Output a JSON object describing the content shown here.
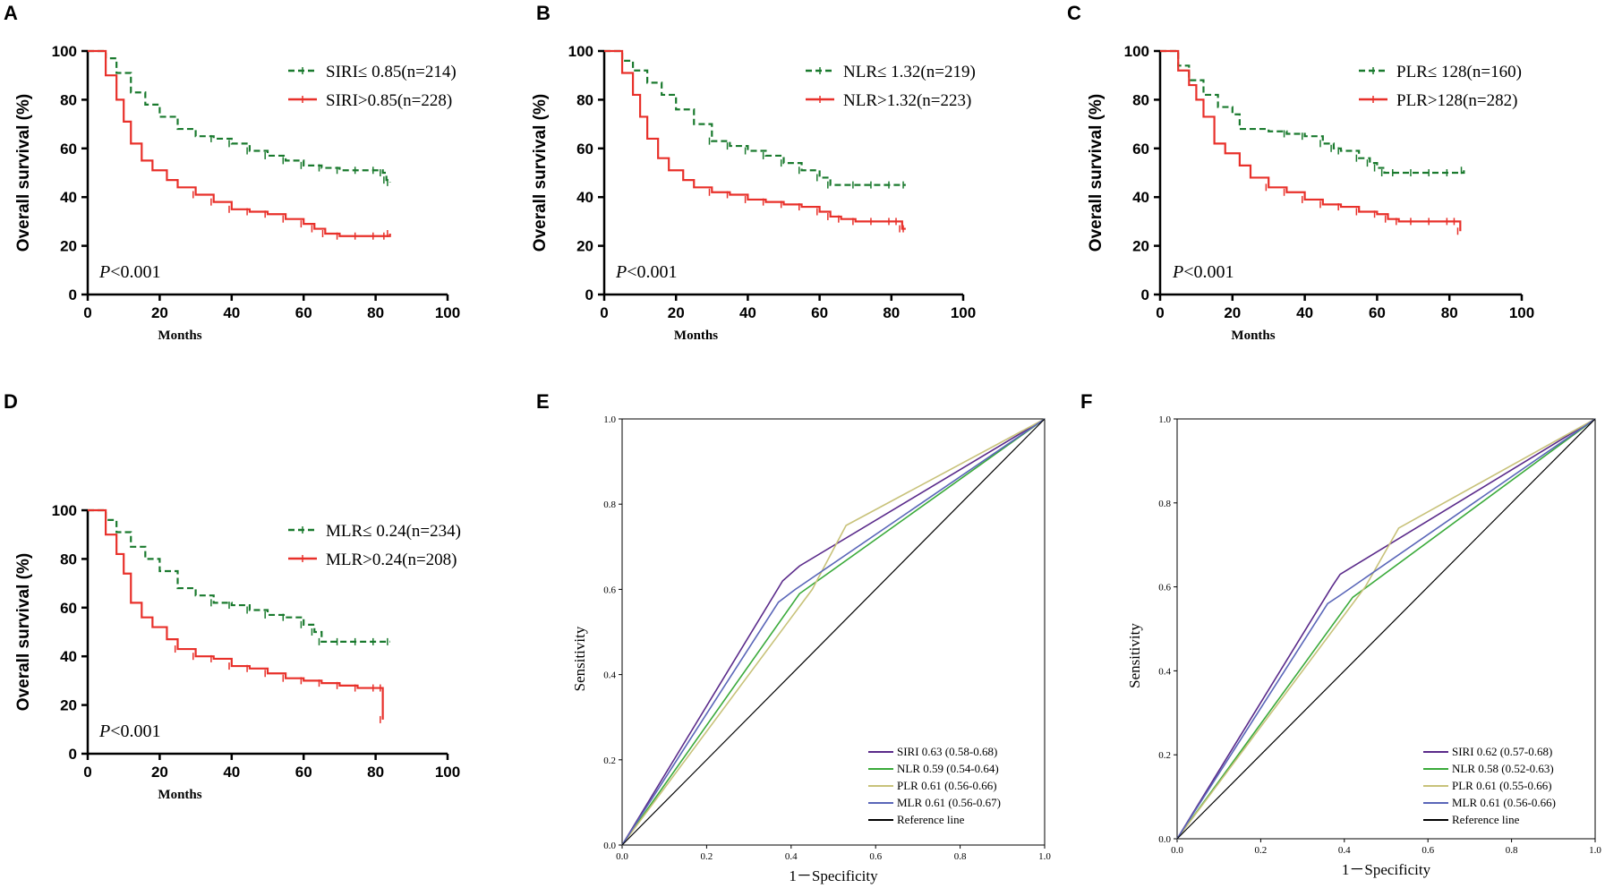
{
  "colors": {
    "green": "#1a7a2e",
    "red": "#e8302a",
    "black": "#000000",
    "siri": "#5a2a8a",
    "nlr": "#3aaa3a",
    "plr": "#c8c27a",
    "mlr": "#5a66b8"
  },
  "chart_data": [
    {
      "panel": "A",
      "type": "line",
      "xlabel": "Months",
      "ylabel": "Overall survival (%)",
      "xlim": [
        0,
        100
      ],
      "ylim": [
        0,
        100
      ],
      "xticks": [
        "0",
        "20",
        "40",
        "60",
        "80",
        "100"
      ],
      "yticks": [
        "0",
        "20",
        "40",
        "60",
        "80",
        "100"
      ],
      "pvalue_italic": "P",
      "pvalue_rest": "<0.001",
      "series": [
        {
          "name": "SIRI≤ 0.85(n=214)",
          "style": "dashed",
          "color": "green",
          "x": [
            3,
            5,
            8,
            12,
            16,
            20,
            25,
            30,
            35,
            40,
            45,
            50,
            55,
            60,
            65,
            70,
            75,
            80,
            82,
            83,
            84
          ],
          "y": [
            100,
            97,
            91,
            83,
            78,
            73,
            68,
            65,
            64,
            62,
            59,
            57,
            55,
            53,
            52,
            51,
            51,
            51,
            50,
            47,
            46
          ]
        },
        {
          "name": "SIRI>0.85(n=228)",
          "style": "solid",
          "color": "red",
          "x": [
            3,
            5,
            8,
            10,
            12,
            15,
            18,
            22,
            25,
            30,
            35,
            40,
            45,
            50,
            55,
            60,
            63,
            66,
            70,
            75,
            80,
            83,
            84
          ],
          "y": [
            100,
            90,
            80,
            71,
            62,
            55,
            51,
            47,
            44,
            41,
            38,
            35,
            34,
            33,
            31,
            29,
            27,
            25,
            24,
            24,
            24,
            24,
            25
          ]
        }
      ]
    },
    {
      "panel": "B",
      "type": "line",
      "xlabel": "Months",
      "ylabel": "Overall survival (%)",
      "xlim": [
        0,
        100
      ],
      "ylim": [
        0,
        100
      ],
      "xticks": [
        "0",
        "20",
        "40",
        "60",
        "80",
        "100"
      ],
      "yticks": [
        "0",
        "20",
        "40",
        "60",
        "80",
        "100"
      ],
      "pvalue_italic": "P",
      "pvalue_rest": "<0.001",
      "series": [
        {
          "name": "NLR≤ 1.32(n=219)",
          "style": "dashed",
          "color": "green",
          "x": [
            3,
            5,
            8,
            12,
            16,
            20,
            25,
            30,
            35,
            40,
            45,
            50,
            55,
            60,
            63,
            70,
            75,
            80,
            84
          ],
          "y": [
            100,
            96,
            92,
            87,
            82,
            76,
            70,
            63,
            61,
            59,
            57,
            54,
            51,
            48,
            45,
            45,
            45,
            45,
            45
          ]
        },
        {
          "name": "NLR>1.32(n=223)",
          "style": "solid",
          "color": "red",
          "x": [
            3,
            5,
            8,
            10,
            12,
            15,
            18,
            22,
            25,
            30,
            35,
            40,
            45,
            50,
            55,
            60,
            63,
            66,
            70,
            75,
            80,
            82,
            83,
            84
          ],
          "y": [
            100,
            91,
            82,
            73,
            64,
            56,
            51,
            47,
            44,
            42,
            41,
            39,
            38,
            37,
            36,
            34,
            32,
            31,
            30,
            30,
            30,
            30,
            27,
            27
          ]
        }
      ]
    },
    {
      "panel": "C",
      "type": "line",
      "xlabel": "Months",
      "ylabel": "Overall survival (%)",
      "xlim": [
        0,
        100
      ],
      "ylim": [
        0,
        100
      ],
      "xticks": [
        "0",
        "20",
        "40",
        "60",
        "80",
        "100"
      ],
      "yticks": [
        "0",
        "20",
        "40",
        "60",
        "80",
        "100"
      ],
      "pvalue_italic": "P",
      "pvalue_rest": "<0.001",
      "series": [
        {
          "name": "PLR≤ 128(n=160)",
          "style": "dashed",
          "color": "green",
          "x": [
            3,
            5,
            8,
            12,
            16,
            20,
            22,
            25,
            30,
            35,
            40,
            45,
            48,
            50,
            55,
            58,
            60,
            62,
            65,
            70,
            75,
            80,
            84
          ],
          "y": [
            100,
            94,
            88,
            82,
            77,
            74,
            68,
            68,
            67,
            66,
            65,
            62,
            60,
            59,
            56,
            54,
            52,
            50,
            50,
            50,
            50,
            50,
            51
          ]
        },
        {
          "name": "PLR>128(n=282)",
          "style": "solid",
          "color": "red",
          "x": [
            3,
            5,
            8,
            10,
            12,
            15,
            18,
            22,
            25,
            30,
            35,
            40,
            45,
            50,
            55,
            60,
            63,
            66,
            70,
            75,
            80,
            82,
            83
          ],
          "y": [
            100,
            92,
            86,
            80,
            73,
            62,
            58,
            53,
            48,
            44,
            42,
            39,
            37,
            36,
            34,
            33,
            31,
            30,
            30,
            30,
            30,
            30,
            26
          ]
        }
      ]
    },
    {
      "panel": "D",
      "type": "line",
      "xlabel": "Months",
      "ylabel": "Overall survival (%)",
      "xlim": [
        0,
        100
      ],
      "ylim": [
        0,
        100
      ],
      "xticks": [
        "0",
        "20",
        "40",
        "60",
        "80",
        "100"
      ],
      "yticks": [
        "0",
        "20",
        "40",
        "60",
        "80",
        "100"
      ],
      "pvalue_italic": "P",
      "pvalue_rest": "<0.001",
      "series": [
        {
          "name": "MLR≤ 0.24(n=234)",
          "style": "dashed",
          "color": "green",
          "x": [
            3,
            5,
            8,
            12,
            16,
            20,
            25,
            30,
            35,
            40,
            45,
            50,
            55,
            60,
            63,
            65,
            70,
            75,
            80,
            84
          ],
          "y": [
            100,
            96,
            91,
            85,
            80,
            75,
            68,
            65,
            62,
            61,
            59,
            57,
            56,
            53,
            50,
            46,
            46,
            46,
            46,
            46
          ]
        },
        {
          "name": "MLR>0.24(n=208)",
          "style": "solid",
          "color": "red",
          "x": [
            3,
            5,
            8,
            10,
            12,
            15,
            18,
            22,
            25,
            30,
            35,
            40,
            45,
            50,
            55,
            60,
            65,
            70,
            75,
            80,
            82,
            82
          ],
          "y": [
            100,
            90,
            82,
            74,
            62,
            56,
            52,
            47,
            43,
            40,
            39,
            36,
            35,
            33,
            31,
            30,
            29,
            28,
            27,
            27,
            27,
            14
          ]
        }
      ]
    },
    {
      "panel": "E",
      "type": "line",
      "xlabel": "1－Specificity",
      "ylabel": "Sensitivity",
      "xlim": [
        0,
        1
      ],
      "ylim": [
        0,
        1
      ],
      "xticks": [
        "0.0",
        "0.2",
        "0.4",
        "0.6",
        "0.8",
        "1.0"
      ],
      "yticks": [
        "0.0",
        "0.2",
        "0.4",
        "0.6",
        "0.8",
        "1.0"
      ],
      "series": [
        {
          "name": "SIRI 0.63 (0.58-0.68)",
          "color": "siri",
          "x": [
            0,
            0.38,
            0.42,
            1
          ],
          "y": [
            0,
            0.62,
            0.655,
            1
          ]
        },
        {
          "name": "NLR 0.59 (0.54-0.64)",
          "color": "nlr",
          "x": [
            0,
            0.42,
            1
          ],
          "y": [
            0,
            0.59,
            1
          ]
        },
        {
          "name": "PLR 0.61 (0.56-0.66)",
          "color": "plr",
          "x": [
            0,
            0.45,
            0.53,
            1
          ],
          "y": [
            0,
            0.6,
            0.75,
            1
          ]
        },
        {
          "name": "MLR 0.61 (0.56-0.67)",
          "color": "mlr",
          "x": [
            0,
            0.37,
            0.41,
            1
          ],
          "y": [
            0,
            0.57,
            0.6,
            1
          ]
        },
        {
          "name": "Reference line",
          "color": "black",
          "x": [
            0,
            1
          ],
          "y": [
            0,
            1
          ]
        }
      ]
    },
    {
      "panel": "F",
      "type": "line",
      "xlabel": "1－Specificity",
      "ylabel": "Sensitivity",
      "xlim": [
        0,
        1
      ],
      "ylim": [
        0,
        1
      ],
      "xticks": [
        "0.0",
        "0.2",
        "0.4",
        "0.6",
        "0.8",
        "1.0"
      ],
      "yticks": [
        "0.0",
        "0.2",
        "0.4",
        "0.6",
        "0.8",
        "1.0"
      ],
      "series": [
        {
          "name": "SIRI 0.62 (0.57-0.68)",
          "color": "siri",
          "x": [
            0,
            0.37,
            0.39,
            1
          ],
          "y": [
            0,
            0.6,
            0.63,
            1
          ]
        },
        {
          "name": "NLR 0.58 (0.52-0.63)",
          "color": "nlr",
          "x": [
            0,
            0.42,
            1
          ],
          "y": [
            0,
            0.575,
            1
          ]
        },
        {
          "name": "PLR 0.61 (0.55-0.66)",
          "color": "plr",
          "x": [
            0,
            0.45,
            0.53,
            1
          ],
          "y": [
            0,
            0.6,
            0.74,
            1
          ]
        },
        {
          "name": "MLR 0.61 (0.56-0.66)",
          "color": "mlr",
          "x": [
            0,
            0.36,
            0.39,
            1
          ],
          "y": [
            0,
            0.56,
            0.58,
            1
          ]
        },
        {
          "name": "Reference line",
          "color": "black",
          "x": [
            0,
            1
          ],
          "y": [
            0,
            1
          ]
        }
      ]
    }
  ]
}
